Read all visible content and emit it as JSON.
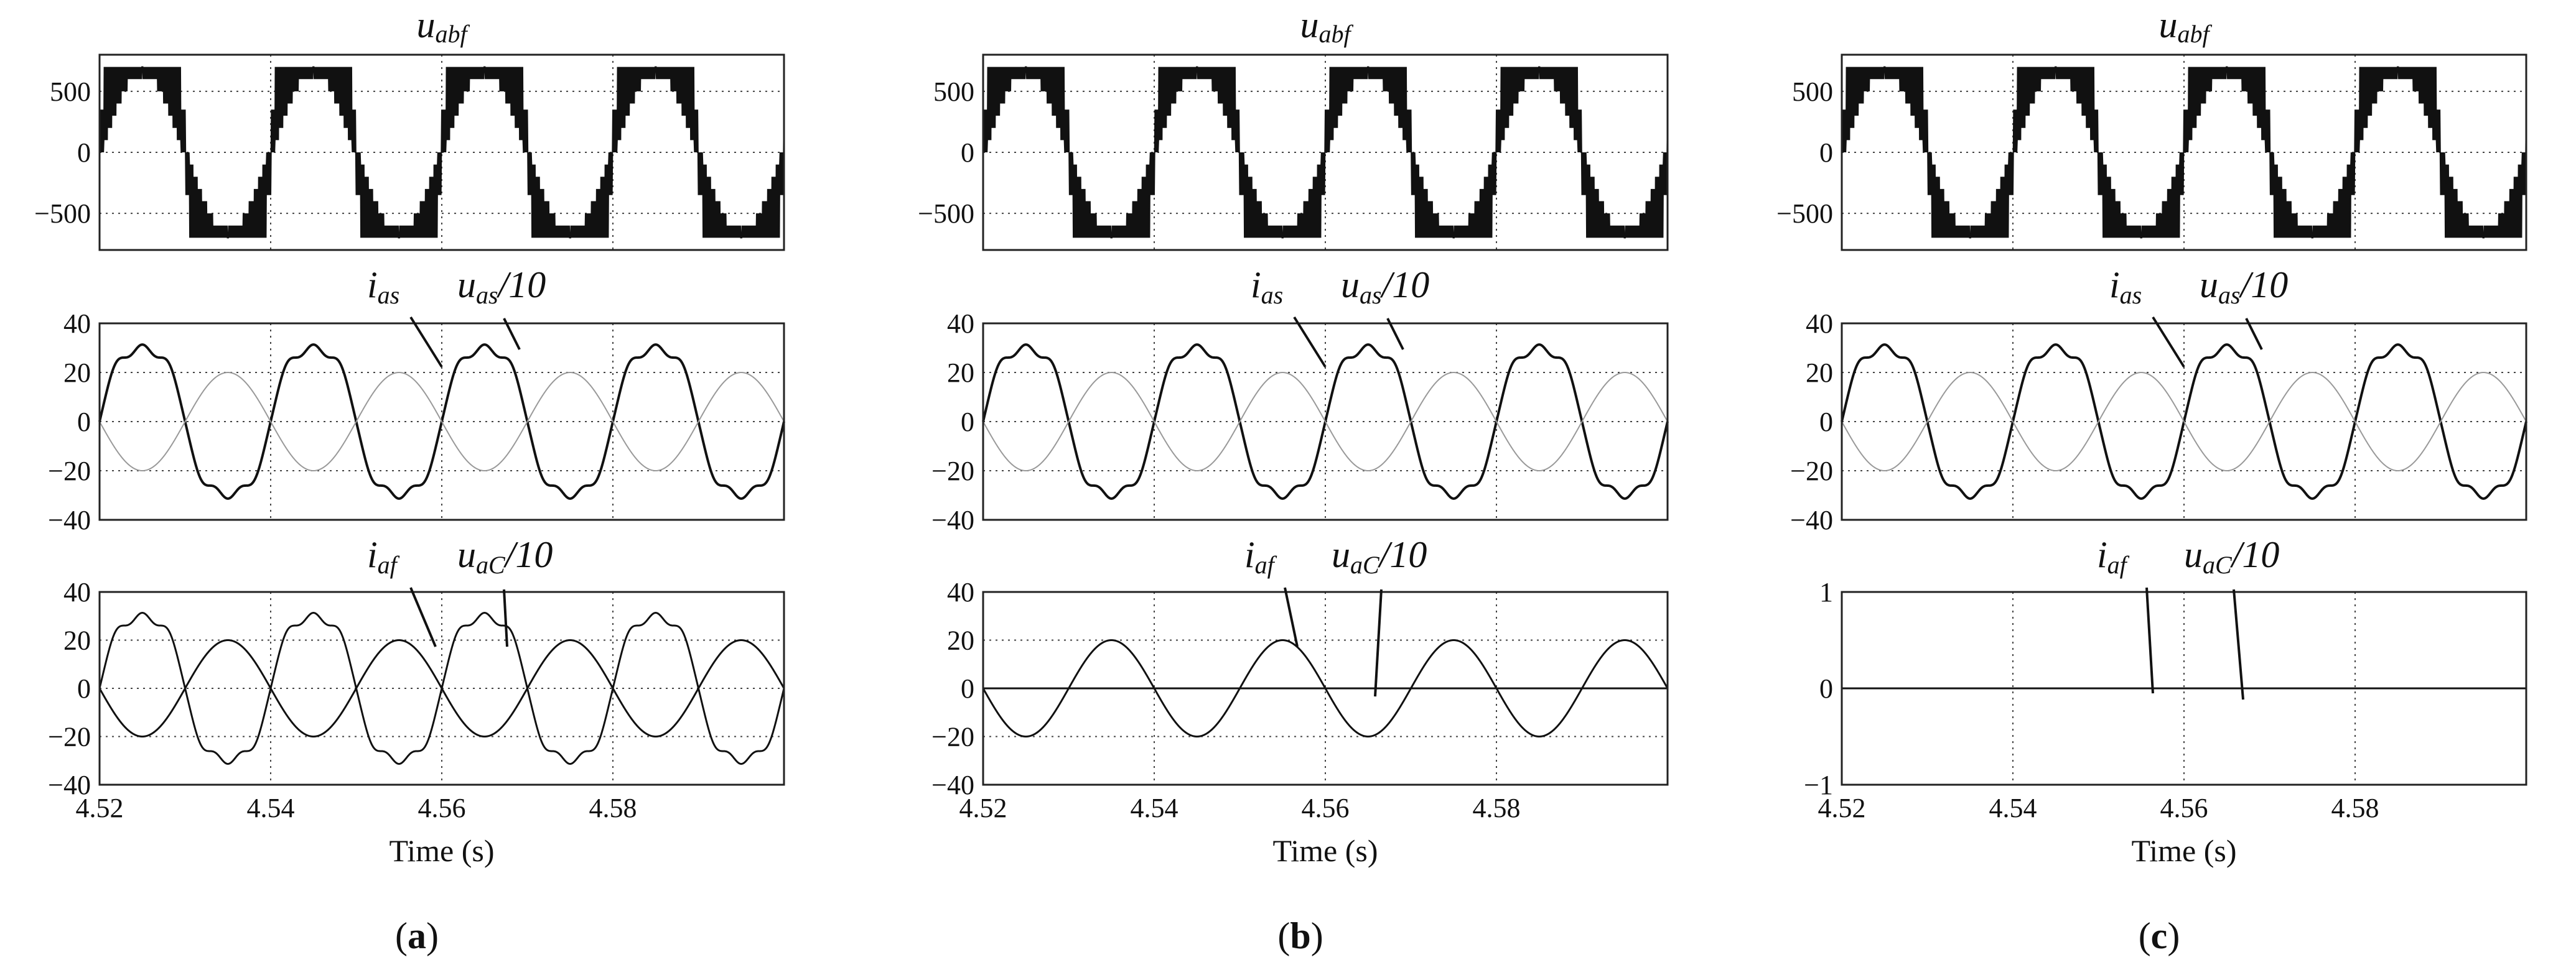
{
  "chart_data": [
    {
      "id": "a",
      "caption_open": "(",
      "caption_letter": "a",
      "caption_close": ")",
      "xlabel": "Time (s)",
      "xlim": [
        4.52,
        4.6
      ],
      "x_ticks": [
        "4.52",
        "4.54",
        "4.56",
        "4.58"
      ],
      "subplots": [
        {
          "type": "line",
          "title": "uabf",
          "title_main": "u",
          "title_sub": "abf",
          "ylim": [
            -800,
            800
          ],
          "y_ticks": [
            500,
            0,
            -500
          ],
          "y_tick_labels": [
            "500",
            "0",
            "−500"
          ],
          "series": [
            {
              "kind": "multilevel-pwm",
              "peak": 700,
              "period_s": 0.02,
              "phase_deg": 0
            }
          ],
          "annotations": []
        },
        {
          "type": "line",
          "ylim": [
            -40,
            40
          ],
          "y_ticks": [
            40,
            20,
            0,
            -20,
            -40
          ],
          "y_tick_labels": [
            "40",
            "20",
            "0",
            "−20",
            "−40"
          ],
          "series": [
            {
              "label": "ias",
              "amplitude": 33,
              "period_s": 0.02,
              "phase_deg": 0,
              "stroke": "#111111",
              "width": 4,
              "distortion": true
            },
            {
              "label": "uas/10",
              "amplitude": 20,
              "period_s": 0.02,
              "phase_deg": 180,
              "stroke": "#999999",
              "width": 2,
              "distortion": false
            }
          ],
          "annotations": [
            {
              "main": "i",
              "sub": "as",
              "tail": ""
            },
            {
              "main": "u",
              "sub": "as",
              "tail": "/10"
            }
          ]
        },
        {
          "type": "line",
          "ylim": [
            -40,
            40
          ],
          "y_ticks": [
            40,
            20,
            0,
            -20,
            -40
          ],
          "y_tick_labels": [
            "40",
            "20",
            "0",
            "−20",
            "−40"
          ],
          "series": [
            {
              "label": "iaf",
              "amplitude": 20,
              "period_s": 0.02,
              "phase_deg": 180,
              "stroke": "#111111",
              "width": 3,
              "distortion": false
            },
            {
              "label": "uaC/10",
              "amplitude": 33,
              "period_s": 0.02,
              "phase_deg": 0,
              "stroke": "#111111",
              "width": 3,
              "distortion": true
            }
          ],
          "annotations": [
            {
              "main": "i",
              "sub": "af",
              "tail": ""
            },
            {
              "main": "u",
              "sub": "aC",
              "tail": "/10"
            }
          ]
        }
      ]
    },
    {
      "id": "b",
      "caption_open": "(",
      "caption_letter": "b",
      "caption_close": ")",
      "xlabel": "Time (s)",
      "xlim": [
        4.52,
        4.6
      ],
      "x_ticks": [
        "4.52",
        "4.54",
        "4.56",
        "4.58"
      ],
      "subplots": [
        {
          "type": "line",
          "title": "uabf",
          "title_main": "u",
          "title_sub": "abf",
          "ylim": [
            -800,
            800
          ],
          "y_ticks": [
            500,
            0,
            -500
          ],
          "y_tick_labels": [
            "500",
            "0",
            "−500"
          ],
          "series": [
            {
              "kind": "multilevel-pwm",
              "peak": 700,
              "period_s": 0.02,
              "phase_deg": 0
            }
          ],
          "annotations": []
        },
        {
          "type": "line",
          "ylim": [
            -40,
            40
          ],
          "y_ticks": [
            40,
            20,
            0,
            -20,
            -40
          ],
          "y_tick_labels": [
            "40",
            "20",
            "0",
            "−20",
            "−40"
          ],
          "series": [
            {
              "label": "ias",
              "amplitude": 33,
              "period_s": 0.02,
              "phase_deg": 0,
              "stroke": "#111111",
              "width": 4,
              "distortion": true
            },
            {
              "label": "uas/10",
              "amplitude": 20,
              "period_s": 0.02,
              "phase_deg": 180,
              "stroke": "#999999",
              "width": 2,
              "distortion": false
            }
          ],
          "annotations": [
            {
              "main": "i",
              "sub": "as",
              "tail": ""
            },
            {
              "main": "u",
              "sub": "as",
              "tail": "/10"
            }
          ]
        },
        {
          "type": "line",
          "ylim": [
            -40,
            40
          ],
          "y_ticks": [
            40,
            20,
            0,
            -20,
            -40
          ],
          "y_tick_labels": [
            "40",
            "20",
            "0",
            "−20",
            "−40"
          ],
          "series": [
            {
              "label": "iaf",
              "amplitude": 20,
              "period_s": 0.02,
              "phase_deg": 180,
              "stroke": "#111111",
              "width": 3,
              "distortion": false
            },
            {
              "label": "uaC/10",
              "amplitude": 0,
              "period_s": 0.02,
              "phase_deg": 0,
              "stroke": "#111111",
              "width": 3,
              "distortion": false
            }
          ],
          "annotations": [
            {
              "main": "i",
              "sub": "af",
              "tail": ""
            },
            {
              "main": "u",
              "sub": "aC",
              "tail": "/10"
            }
          ]
        }
      ]
    },
    {
      "id": "c",
      "caption_open": "(",
      "caption_letter": "c",
      "caption_close": ")",
      "xlabel": "Time (s)",
      "xlim": [
        4.52,
        4.6
      ],
      "x_ticks": [
        "4.52",
        "4.54",
        "4.56",
        "4.58"
      ],
      "subplots": [
        {
          "type": "line",
          "title": "uabf",
          "title_main": "u",
          "title_sub": "abf",
          "ylim": [
            -800,
            800
          ],
          "y_ticks": [
            500,
            0,
            -500
          ],
          "y_tick_labels": [
            "500",
            "0",
            "−500"
          ],
          "series": [
            {
              "kind": "multilevel-pwm",
              "peak": 700,
              "period_s": 0.02,
              "phase_deg": 0
            }
          ],
          "annotations": []
        },
        {
          "type": "line",
          "ylim": [
            -40,
            40
          ],
          "y_ticks": [
            40,
            20,
            0,
            -20,
            -40
          ],
          "y_tick_labels": [
            "40",
            "20",
            "0",
            "−20",
            "−40"
          ],
          "series": [
            {
              "label": "ias",
              "amplitude": 33,
              "period_s": 0.02,
              "phase_deg": 0,
              "stroke": "#111111",
              "width": 4,
              "distortion": true
            },
            {
              "label": "uas/10",
              "amplitude": 20,
              "period_s": 0.02,
              "phase_deg": 180,
              "stroke": "#999999",
              "width": 2,
              "distortion": false
            }
          ],
          "annotations": [
            {
              "main": "i",
              "sub": "as",
              "tail": ""
            },
            {
              "main": "u",
              "sub": "as",
              "tail": "/10"
            }
          ]
        },
        {
          "type": "line",
          "ylim": [
            -1,
            1
          ],
          "y_ticks": [
            1,
            0,
            -1
          ],
          "y_tick_labels": [
            "1",
            "0",
            "−1"
          ],
          "series": [
            {
              "label": "iaf",
              "amplitude": 0,
              "period_s": 0.02,
              "phase_deg": 0,
              "stroke": "#111111",
              "width": 3,
              "distortion": false
            },
            {
              "label": "uaC/10",
              "amplitude": 0,
              "period_s": 0.02,
              "phase_deg": 0,
              "stroke": "#111111",
              "width": 3,
              "distortion": false
            }
          ],
          "annotations": [
            {
              "main": "i",
              "sub": "af",
              "tail": ""
            },
            {
              "main": "u",
              "sub": "aC",
              "tail": "/10"
            }
          ]
        }
      ]
    }
  ]
}
